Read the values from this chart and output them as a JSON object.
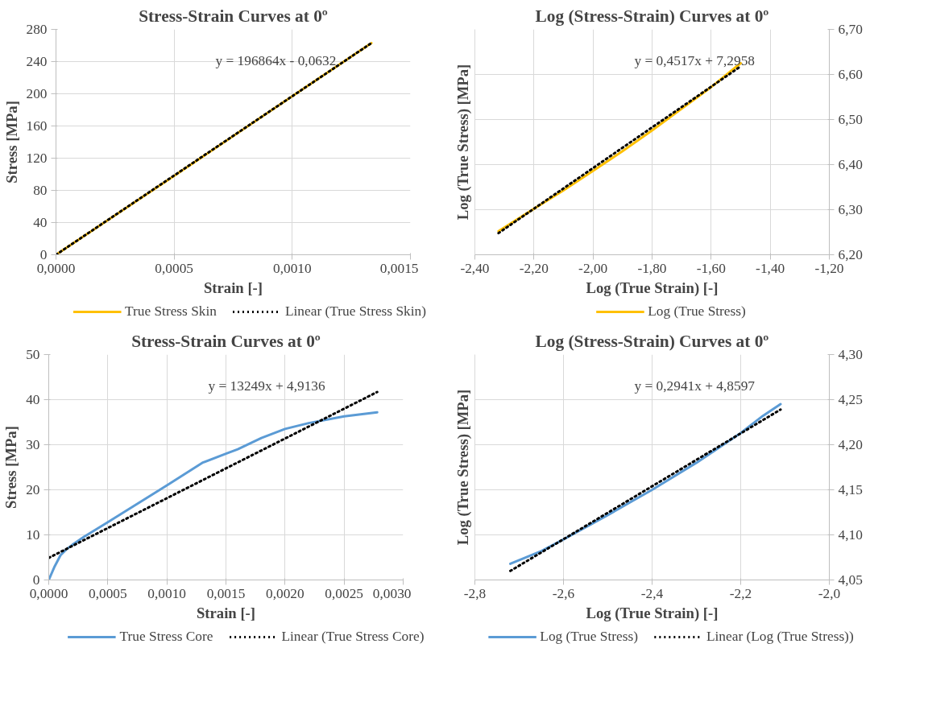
{
  "chart_data": [
    {
      "type": "line",
      "title": "Stress-Strain Curves at 0º",
      "xlabel": "Strain [-]",
      "ylabel": "Stress [MPa]",
      "xlim": [
        0,
        0.0015
      ],
      "xticks": [
        {
          "value": 0,
          "label": "0,0000"
        },
        {
          "value": 0.0005,
          "label": "0,0005"
        },
        {
          "value": 0.001,
          "label": "0,0010"
        },
        {
          "value": 0.0015,
          "label": "0,0015"
        }
      ],
      "ylim": [
        0,
        280
      ],
      "yticks": [
        0,
        40,
        80,
        120,
        160,
        200,
        240,
        280
      ],
      "grid": true,
      "legend": "bottom",
      "marker": "none",
      "series": [
        {
          "name": "True Stress Skin",
          "color": "#ffc000",
          "line_style": "solid",
          "x": [
            0,
            0.0005,
            0.001,
            0.001335
          ],
          "values": [
            0,
            98,
            197,
            263
          ]
        },
        {
          "name": "Linear (True Stress Skin)",
          "color": "#000000",
          "line_style": "dotted",
          "x": [
            0,
            0.001335
          ],
          "values": [
            0,
            263
          ]
        }
      ],
      "annotations": [
        "y = 196864x - 0,0632"
      ]
    },
    {
      "type": "line",
      "title": "Log (Stress-Strain) Curves at 0º",
      "xlabel": "Log (True Strain) [-]",
      "ylabel": "Log (True Stress) [MPa]",
      "xlim": [
        -2.4,
        -1.2
      ],
      "xticks": [
        {
          "value": -2.4,
          "label": "-2,40"
        },
        {
          "value": -2.2,
          "label": "-2,20"
        },
        {
          "value": -2.0,
          "label": "-2,00"
        },
        {
          "value": -1.8,
          "label": "-1,80"
        },
        {
          "value": -1.6,
          "label": "-1,60"
        },
        {
          "value": -1.4,
          "label": "-1,40"
        },
        {
          "value": -1.2,
          "label": "-1,20"
        }
      ],
      "ylim": [
        6.2,
        6.7
      ],
      "yticks": [
        {
          "value": 6.2,
          "label": "6,20"
        },
        {
          "value": 6.3,
          "label": "6,30"
        },
        {
          "value": 6.4,
          "label": "6,40"
        },
        {
          "value": 6.5,
          "label": "6,50"
        },
        {
          "value": 6.6,
          "label": "6,60"
        },
        {
          "value": 6.7,
          "label": "6,70"
        }
      ],
      "grid": true,
      "legend": "bottom",
      "marker": "none",
      "series": [
        {
          "name": "Log (True Stress)",
          "color": "#ffc000",
          "line_style": "solid",
          "x": [
            -2.32,
            -2.2,
            -2.1,
            -2.0,
            -1.9,
            -1.8,
            -1.7,
            -1.6,
            -1.5
          ],
          "values": [
            6.252,
            6.302,
            6.343,
            6.386,
            6.43,
            6.476,
            6.524,
            6.572,
            6.625
          ]
        },
        {
          "color": "#000000",
          "line_style": "dotted",
          "x": [
            -2.32,
            -1.5
          ],
          "values": [
            6.248,
            6.618
          ]
        }
      ],
      "annotations": [
        "y = 0,4517x + 7,2958"
      ]
    },
    {
      "type": "line",
      "title": "Stress-Strain Curves at 0º",
      "xlabel": "Strain [-]",
      "ylabel": "Stress [MPa]",
      "xlim": [
        0,
        0.003
      ],
      "xticks": [
        {
          "value": 0,
          "label": "0,0000"
        },
        {
          "value": 0.0005,
          "label": "0,0005"
        },
        {
          "value": 0.001,
          "label": "0,0010"
        },
        {
          "value": 0.0015,
          "label": "0,0015"
        },
        {
          "value": 0.002,
          "label": "0,0020"
        },
        {
          "value": 0.0025,
          "label": "0,0025"
        },
        {
          "value": 0.003,
          "label": "0,0030"
        }
      ],
      "ylim": [
        0,
        50
      ],
      "yticks": [
        0,
        10,
        20,
        30,
        40,
        50
      ],
      "grid": true,
      "legend": "bottom",
      "marker": "none",
      "series": [
        {
          "name": "True Stress Core",
          "color": "#5b9bd5",
          "line_style": "solid",
          "x": [
            0,
            5e-05,
            0.0001,
            0.00015,
            0.0002,
            0.0003,
            0.0005,
            0.001,
            0.0013,
            0.0015,
            0.0016,
            0.0018,
            0.002,
            0.0022,
            0.0025,
            0.00278
          ],
          "values": [
            0,
            3,
            5.5,
            6.8,
            7.8,
            9.6,
            12.8,
            21,
            26,
            28,
            29,
            31.5,
            33.5,
            34.8,
            36.3,
            37.2
          ]
        },
        {
          "name": "Linear (True Stress Core)",
          "color": "#000000",
          "line_style": "dotted",
          "x": [
            0,
            0.00278
          ],
          "values": [
            4.9,
            41.7
          ]
        }
      ],
      "annotations": [
        "y = 13249x + 4,9136"
      ]
    },
    {
      "type": "line",
      "title": "Log (Stress-Strain) Curves at 0º",
      "xlabel": "Log (True Strain) [-]",
      "ylabel": "Log (True Stress) [MPa]",
      "xlim": [
        -2.8,
        -2.0
      ],
      "xticks": [
        {
          "value": -2.8,
          "label": "-2,8"
        },
        {
          "value": -2.6,
          "label": "-2,6"
        },
        {
          "value": -2.4,
          "label": "-2,4"
        },
        {
          "value": -2.2,
          "label": "-2,2"
        },
        {
          "value": -2.0,
          "label": "-2,0"
        }
      ],
      "ylim": [
        4.05,
        4.3
      ],
      "yticks": [
        {
          "value": 4.05,
          "label": "4,05"
        },
        {
          "value": 4.1,
          "label": "4,10"
        },
        {
          "value": 4.15,
          "label": "4,15"
        },
        {
          "value": 4.2,
          "label": "4,20"
        },
        {
          "value": 4.25,
          "label": "4,25"
        },
        {
          "value": 4.3,
          "label": "4,30"
        }
      ],
      "grid": true,
      "legend": "bottom",
      "marker": "none",
      "series": [
        {
          "name": "Log (True Stress)",
          "color": "#5b9bd5",
          "line_style": "solid",
          "x": [
            -2.72,
            -2.7,
            -2.65,
            -2.6,
            -2.5,
            -2.4,
            -2.3,
            -2.2,
            -2.15,
            -2.11
          ],
          "values": [
            4.068,
            4.072,
            4.082,
            4.095,
            4.122,
            4.15,
            4.18,
            4.213,
            4.232,
            4.245
          ]
        },
        {
          "name": "Linear (Log (True Stress))",
          "color": "#000000",
          "line_style": "dotted",
          "x": [
            -2.72,
            -2.11
          ],
          "values": [
            4.06,
            4.239
          ]
        }
      ],
      "annotations": [
        "y = 0,2941x + 4,8597"
      ]
    }
  ]
}
